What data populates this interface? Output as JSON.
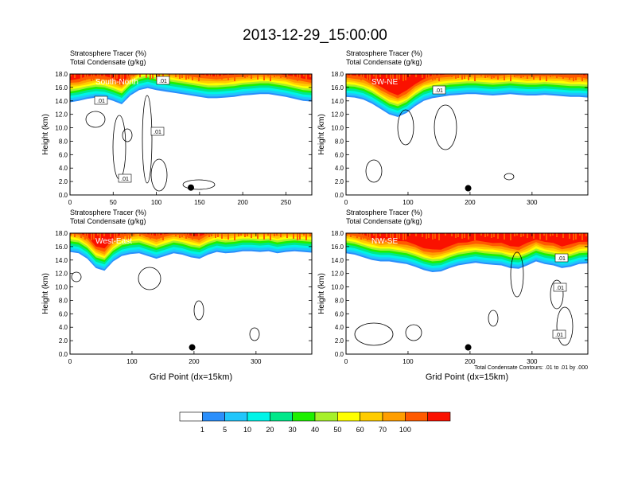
{
  "title": "2013-12-29_15:00:00",
  "chart_data": [
    {
      "type": "heatmap",
      "panel": "top-left",
      "label": "South-North",
      "title_lines": [
        "Stratosphere Tracer   (%)",
        "Total Condensate   (g/kg)"
      ],
      "ylabel": "Height (km)",
      "xlabel": "",
      "xlim": [
        0,
        280
      ],
      "ylim": [
        0,
        18
      ],
      "xticks": [
        0,
        50,
        100,
        150,
        200,
        250
      ],
      "xtick_labels": [
        "0",
        "50",
        "100",
        "150",
        "200",
        "250"
      ],
      "yticks": [
        0,
        2,
        4,
        6,
        8,
        10,
        12,
        14,
        16,
        18
      ],
      "ytick_labels": [
        "0.0",
        "2.0",
        "4.0",
        "6.0",
        "8.0",
        "10.0",
        "12.0",
        "14.0",
        "16.0",
        "18.0"
      ],
      "tracer_bottom_km_profile": [
        13.8,
        14.0,
        14.3,
        14.5,
        14.4,
        14.0,
        13.5,
        14.8,
        15.6,
        15.9,
        15.6,
        15.4,
        15.2,
        15.0,
        14.8,
        14.6,
        14.4,
        14.4,
        14.5,
        14.6,
        14.8,
        14.9,
        15.0,
        15.0,
        14.8,
        14.6,
        14.3,
        14.0,
        13.9
      ],
      "contour_labels": [
        ".01",
        ".01",
        ".01",
        ".01"
      ],
      "marker": {
        "x": 140,
        "y": 1.1
      }
    },
    {
      "type": "heatmap",
      "panel": "top-right",
      "label": "SW-NE",
      "title_lines": [
        "Stratosphere Tracer   (%)",
        "Total Condensate   (g/kg)"
      ],
      "ylabel": "Height (km)",
      "xlabel": "",
      "xlim": [
        0,
        390
      ],
      "ylim": [
        0,
        18
      ],
      "xticks": [
        0,
        100,
        200,
        300
      ],
      "xtick_labels": [
        "0",
        "100",
        "200",
        "300"
      ],
      "yticks": [
        0,
        2,
        4,
        6,
        8,
        10,
        12,
        14,
        16,
        18
      ],
      "ytick_labels": [
        "0.0",
        "2.0",
        "4.0",
        "6.0",
        "8.0",
        "10.0",
        "12.0",
        "14.0",
        "16.0",
        "18.0"
      ],
      "tracer_bottom_km_profile": [
        14.6,
        14.5,
        14.2,
        13.6,
        12.8,
        12.0,
        11.6,
        12.2,
        13.2,
        14.0,
        14.4,
        14.6,
        14.8,
        14.9,
        15.0,
        15.0,
        14.9,
        14.8,
        14.9,
        15.0,
        14.9,
        14.8,
        14.8,
        14.9,
        14.8,
        14.7,
        14.6,
        14.6,
        14.5
      ],
      "contour_labels": [
        ".01"
      ],
      "marker": {
        "x": 197,
        "y": 1.0
      }
    },
    {
      "type": "heatmap",
      "panel": "bottom-left",
      "label": "West-East",
      "title_lines": [
        "Stratosphere Tracer   (%)",
        "Total Condensate   (g/kg)"
      ],
      "ylabel": "Height (km)",
      "xlabel": "Grid Point (dx=15km)",
      "xlim": [
        0,
        390
      ],
      "ylim": [
        0,
        18
      ],
      "xticks": [
        0,
        100,
        200,
        300
      ],
      "xtick_labels": [
        "0",
        "100",
        "200",
        "300"
      ],
      "yticks": [
        0,
        2,
        4,
        6,
        8,
        10,
        12,
        14,
        16,
        18
      ],
      "ytick_labels": [
        "0.0",
        "2.0",
        "4.0",
        "6.0",
        "8.0",
        "10.0",
        "12.0",
        "14.0",
        "16.0",
        "18.0"
      ],
      "tracer_bottom_km_profile": [
        15.2,
        15.0,
        14.2,
        12.8,
        12.4,
        13.8,
        14.6,
        14.9,
        15.0,
        14.6,
        14.2,
        14.6,
        15.0,
        14.8,
        14.4,
        14.2,
        14.8,
        15.2,
        15.0,
        15.1,
        15.3,
        15.3,
        15.2,
        15.3,
        15.0,
        15.2,
        15.3,
        15.2,
        15.1
      ],
      "contour_labels": [],
      "marker": {
        "x": 197,
        "y": 1.0
      }
    },
    {
      "type": "heatmap",
      "panel": "bottom-right",
      "label": "NW-SE",
      "title_lines": [
        "Stratosphere Tracer   (%)",
        "Total Condensate   (g/kg)"
      ],
      "ylabel": "Height (km)",
      "xlabel": "Grid Point (dx=15km)",
      "xlim": [
        0,
        390
      ],
      "ylim": [
        0,
        18
      ],
      "xticks": [
        0,
        100,
        200,
        300
      ],
      "xtick_labels": [
        "0",
        "100",
        "200",
        "300"
      ],
      "yticks": [
        0,
        2,
        4,
        6,
        8,
        10,
        12,
        14,
        16,
        18
      ],
      "ytick_labels": [
        "0.0",
        "2.0",
        "4.0",
        "6.0",
        "8.0",
        "10.0",
        "12.0",
        "14.0",
        "16.0",
        "18.0"
      ],
      "tracer_bottom_km_profile": [
        15.0,
        14.8,
        14.4,
        14.0,
        13.8,
        13.8,
        13.6,
        13.4,
        13.0,
        12.5,
        12.2,
        12.3,
        12.8,
        13.2,
        13.4,
        13.6,
        13.4,
        13.3,
        13.2,
        12.8,
        12.7,
        13.2,
        13.8,
        13.4,
        13.2,
        12.8,
        13.0,
        13.4,
        13.5
      ],
      "contour_labels": [
        ".01",
        ".01",
        ".01"
      ],
      "marker": {
        "x": 197,
        "y": 1.0
      },
      "contour_info": "Total Condensate Contours: .01 to .01 by .000"
    }
  ],
  "colorbar": {
    "levels": [
      "1",
      "5",
      "10",
      "20",
      "30",
      "40",
      "50",
      "60",
      "70",
      "100"
    ],
    "colors": [
      "#ffffff",
      "#2b8ffb",
      "#21c6fb",
      "#00f4e8",
      "#00e88a",
      "#1ef000",
      "#a6f02a",
      "#ffff00",
      "#ffcc00",
      "#ff9e00",
      "#ff5a00",
      "#fa1100"
    ]
  }
}
